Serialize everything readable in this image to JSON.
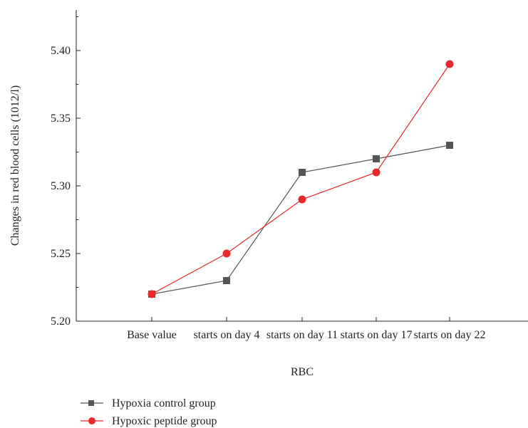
{
  "chart_data": {
    "type": "line",
    "title": "",
    "xlabel": "RBC",
    "ylabel": "Changes in red blood cells (1012/l)",
    "categories": [
      "Base value",
      "starts on day 4",
      "starts on day 11",
      "starts on day 17",
      "starts on day 22"
    ],
    "ylim": [
      5.2,
      5.43
    ],
    "yticks": [
      "5.20",
      "5.25",
      "5.30",
      "5.35",
      "5.40"
    ],
    "grid": false,
    "legend_position": "bottom-left",
    "series": [
      {
        "name": "Hypoxia control group",
        "values": [
          5.22,
          5.23,
          5.31,
          5.32,
          5.33
        ],
        "color": "#555555",
        "marker": "square"
      },
      {
        "name": "Hypoxic peptide group",
        "values": [
          5.22,
          5.25,
          5.29,
          5.31,
          5.39
        ],
        "color": "#e8282b",
        "marker": "circle"
      }
    ]
  }
}
